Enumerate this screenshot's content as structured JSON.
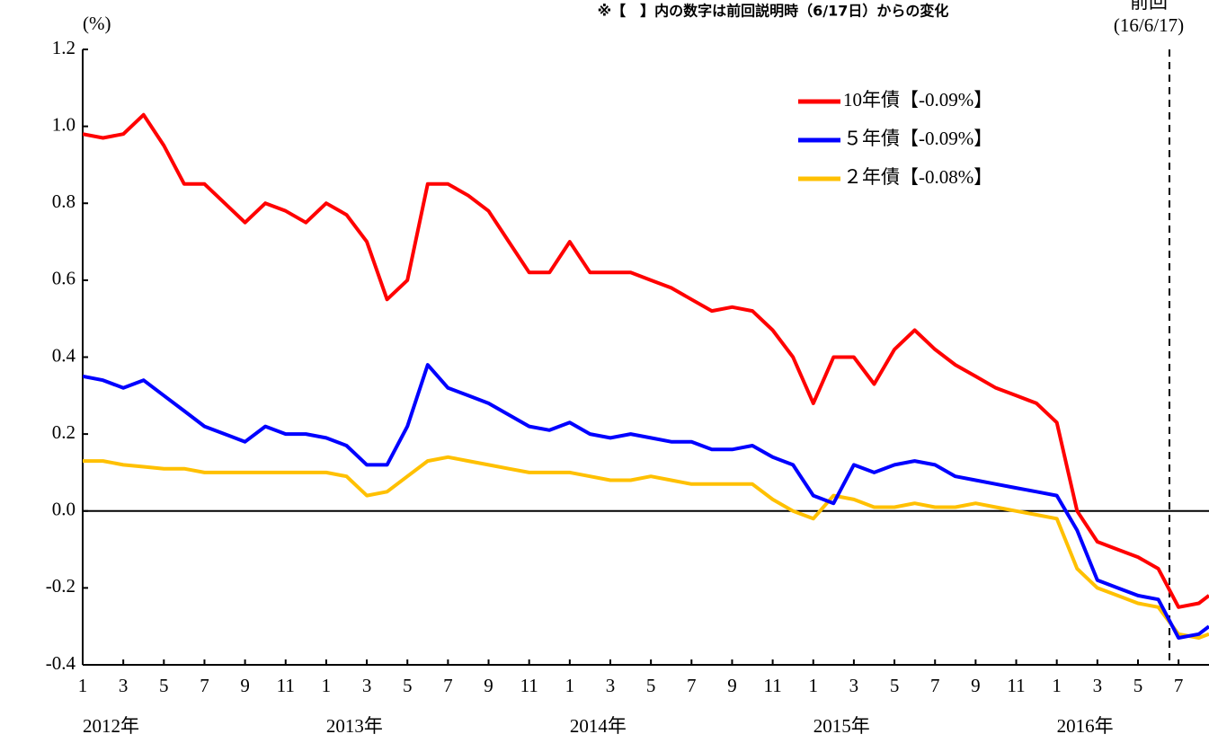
{
  "chart_data": {
    "type": "line",
    "note": "※【　】内の数字は前回説明時（6/17日）からの変化",
    "y_label": "(%)",
    "x": [
      0,
      1,
      2,
      3,
      4,
      5,
      6,
      7,
      8,
      9,
      10,
      11,
      12,
      13,
      14,
      15,
      16,
      17,
      18,
      19,
      20,
      21,
      22,
      23,
      24,
      25,
      26,
      27,
      28,
      29,
      30,
      31,
      32,
      33,
      34,
      35,
      36,
      37,
      38,
      39,
      40,
      41,
      42,
      43,
      44,
      45,
      46,
      47,
      48,
      49,
      50,
      51,
      52,
      53,
      54,
      55,
      55.5
    ],
    "series": [
      {
        "name": "10年債【-0.09%】",
        "color": "#ff0000",
        "values": [
          0.98,
          0.97,
          0.98,
          1.03,
          0.95,
          0.85,
          0.85,
          0.8,
          0.75,
          0.8,
          0.78,
          0.75,
          0.8,
          0.77,
          0.7,
          0.55,
          0.6,
          0.85,
          0.85,
          0.82,
          0.78,
          0.7,
          0.62,
          0.62,
          0.7,
          0.62,
          0.62,
          0.62,
          0.6,
          0.58,
          0.55,
          0.52,
          0.53,
          0.52,
          0.47,
          0.4,
          0.28,
          0.4,
          0.4,
          0.33,
          0.42,
          0.47,
          0.42,
          0.38,
          0.35,
          0.32,
          0.3,
          0.28,
          0.23,
          0.0,
          -0.08,
          -0.1,
          -0.12,
          -0.15,
          -0.25,
          -0.24,
          -0.22
        ]
      },
      {
        "name": "５年債【-0.09%】",
        "color": "#0000ff",
        "values": [
          0.35,
          0.34,
          0.32,
          0.34,
          0.3,
          0.26,
          0.22,
          0.2,
          0.18,
          0.22,
          0.2,
          0.2,
          0.19,
          0.17,
          0.12,
          0.12,
          0.22,
          0.38,
          0.32,
          0.3,
          0.28,
          0.25,
          0.22,
          0.21,
          0.23,
          0.2,
          0.19,
          0.2,
          0.19,
          0.18,
          0.18,
          0.16,
          0.16,
          0.17,
          0.14,
          0.12,
          0.04,
          0.02,
          0.12,
          0.1,
          0.12,
          0.13,
          0.12,
          0.09,
          0.08,
          0.07,
          0.06,
          0.05,
          0.04,
          -0.05,
          -0.18,
          -0.2,
          -0.22,
          -0.23,
          -0.33,
          -0.32,
          -0.3
        ]
      },
      {
        "name": "２年債【-0.08%】",
        "color": "#ffc000",
        "values": [
          0.13,
          0.13,
          0.12,
          0.115,
          0.11,
          0.11,
          0.1,
          0.1,
          0.1,
          0.1,
          0.1,
          0.1,
          0.1,
          0.09,
          0.04,
          0.05,
          0.09,
          0.13,
          0.14,
          0.13,
          0.12,
          0.11,
          0.1,
          0.1,
          0.1,
          0.09,
          0.08,
          0.08,
          0.09,
          0.08,
          0.07,
          0.07,
          0.07,
          0.07,
          0.03,
          0.0,
          -0.02,
          0.04,
          0.03,
          0.01,
          0.01,
          0.02,
          0.01,
          0.01,
          0.02,
          0.01,
          0.0,
          -0.01,
          -0.02,
          -0.15,
          -0.2,
          -0.22,
          -0.24,
          -0.25,
          -0.32,
          -0.33,
          -0.32
        ]
      }
    ],
    "xlim": [
      0,
      55.5
    ],
    "xticks": [
      {
        "value": 0,
        "label": "1"
      },
      {
        "value": 2,
        "label": "3"
      },
      {
        "value": 4,
        "label": "5"
      },
      {
        "value": 6,
        "label": "7"
      },
      {
        "value": 8,
        "label": "9"
      },
      {
        "value": 10,
        "label": "11"
      },
      {
        "value": 12,
        "label": "1"
      },
      {
        "value": 14,
        "label": "3"
      },
      {
        "value": 16,
        "label": "5"
      },
      {
        "value": 18,
        "label": "7"
      },
      {
        "value": 20,
        "label": "9"
      },
      {
        "value": 22,
        "label": "11"
      },
      {
        "value": 24,
        "label": "1"
      },
      {
        "value": 26,
        "label": "3"
      },
      {
        "value": 28,
        "label": "5"
      },
      {
        "value": 30,
        "label": "7"
      },
      {
        "value": 32,
        "label": "9"
      },
      {
        "value": 34,
        "label": "11"
      },
      {
        "value": 36,
        "label": "1"
      },
      {
        "value": 38,
        "label": "3"
      },
      {
        "value": 40,
        "label": "5"
      },
      {
        "value": 42,
        "label": "7"
      },
      {
        "value": 44,
        "label": "9"
      },
      {
        "value": 46,
        "label": "11"
      },
      {
        "value": 48,
        "label": "1"
      },
      {
        "value": 50,
        "label": "3"
      },
      {
        "value": 52,
        "label": "5"
      },
      {
        "value": 54,
        "label": "7"
      }
    ],
    "year_labels": [
      "2012年",
      "2013年",
      "2014年",
      "2015年",
      "2016年"
    ],
    "ylim": [
      -0.4,
      1.2
    ],
    "yticks": [
      -0.4,
      -0.2,
      {
        "value": 0,
        "label": "0.0"
      },
      0.2,
      0.4,
      0.6,
      0.8,
      {
        "value": 1,
        "label": "1.0"
      },
      1.2
    ],
    "reference_line": {
      "x": 53.55,
      "label": "前回",
      "sublabel": "(16/6/17)"
    },
    "legend_position": "upper right",
    "grid": false
  }
}
